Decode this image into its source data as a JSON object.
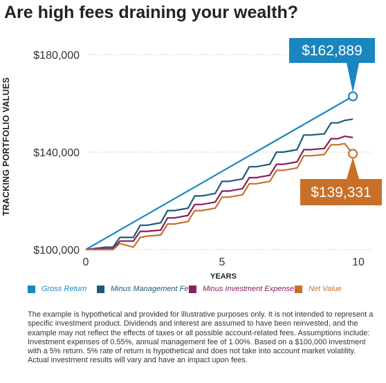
{
  "title": "Are high fees draining your wealth?",
  "chart_data": {
    "type": "line",
    "ylabel": "TRACKING PORTFOLIO VALUES",
    "xlabel": "YEARS",
    "xlim": [
      0,
      10
    ],
    "ylim": [
      100000,
      180000
    ],
    "x_ticks": [
      "0",
      "5",
      "10"
    ],
    "y_ticks": [
      "$100,000",
      "$140,000",
      "$180,000"
    ],
    "grid": "horizontal dotted",
    "series": [
      {
        "name": "Gross Return",
        "color": "#1a86c0",
        "x": [
          0,
          9.8
        ],
        "y": [
          100000,
          162889
        ]
      },
      {
        "name": "Minus Management Fee",
        "color": "#1b5a7a",
        "x": [
          0,
          0.75,
          1.0,
          1.25,
          1.75,
          2.0,
          2.25,
          2.75,
          3.0,
          3.25,
          3.75,
          4.0,
          4.25,
          4.75,
          5.0,
          5.25,
          5.75,
          6.0,
          6.25,
          6.75,
          7.0,
          7.25,
          7.75,
          8.0,
          8.25,
          8.75,
          9.0,
          9.25,
          9.5,
          9.8
        ],
        "y": [
          100000,
          101000,
          101000,
          105000,
          105000,
          110000,
          110000,
          111000,
          116000,
          116000,
          117000,
          122000,
          122000,
          123000,
          128000,
          128000,
          129000,
          134000,
          134000,
          135000,
          140000,
          140000,
          141000,
          147000,
          147000,
          147500,
          152000,
          152000,
          153000,
          153500
        ]
      },
      {
        "name": "Minus Investment Expenses",
        "color": "#8b1d5c",
        "x": [
          0,
          0.75,
          1.0,
          1.25,
          1.75,
          2.0,
          2.25,
          2.75,
          3.0,
          3.25,
          3.75,
          4.0,
          4.25,
          4.75,
          5.0,
          5.25,
          5.75,
          6.0,
          6.25,
          6.75,
          7.0,
          7.25,
          7.75,
          8.0,
          8.25,
          8.75,
          9.0,
          9.25,
          9.5,
          9.8
        ],
        "y": [
          100000,
          100300,
          100300,
          103500,
          103500,
          107500,
          107500,
          108000,
          113000,
          113000,
          114000,
          118500,
          118500,
          119500,
          124000,
          124000,
          125000,
          129500,
          129500,
          130500,
          135000,
          135000,
          136000,
          141000,
          141000,
          141500,
          145500,
          145500,
          146500,
          146000
        ]
      },
      {
        "name": "Net Value",
        "color": "#c8702a",
        "x": [
          0,
          0.75,
          1.0,
          1.25,
          1.75,
          2.0,
          2.25,
          2.75,
          3.0,
          3.25,
          3.75,
          4.0,
          4.25,
          4.75,
          5.0,
          5.25,
          5.75,
          6.0,
          6.25,
          6.75,
          7.0,
          7.25,
          7.75,
          8.0,
          8.25,
          8.75,
          9.0,
          9.25,
          9.5,
          9.8
        ],
        "y": [
          100000,
          100000,
          100000,
          102500,
          101000,
          105000,
          105500,
          106000,
          110500,
          110500,
          111500,
          116000,
          116000,
          117000,
          121500,
          121500,
          122500,
          127000,
          127000,
          128000,
          132500,
          132500,
          133500,
          138500,
          138500,
          139000,
          143000,
          143000,
          143500,
          139331
        ]
      }
    ],
    "callouts": [
      {
        "label": "$162,889",
        "series": "Gross Return",
        "color": "#1a86c0"
      },
      {
        "label": "$139,331",
        "series": "Net Value",
        "color": "#c8702a"
      }
    ]
  },
  "disclaimer": "The example is hypothetical and provided for illustrative purposes only. It is not intended to represent a specific investment product. Dividends and interest are assumed to have been reinvested, and the example may not reflect the effects of taxes or all possible account-related fees. Assumptions include: Investment expenses of 0.55%, annual management fee of 1.00%. Based on a $100,000 investment with a 5% return. 5% rate of return is hypothetical and does not take into account market volatility. Actual investment results will vary and have an impact upon fees."
}
